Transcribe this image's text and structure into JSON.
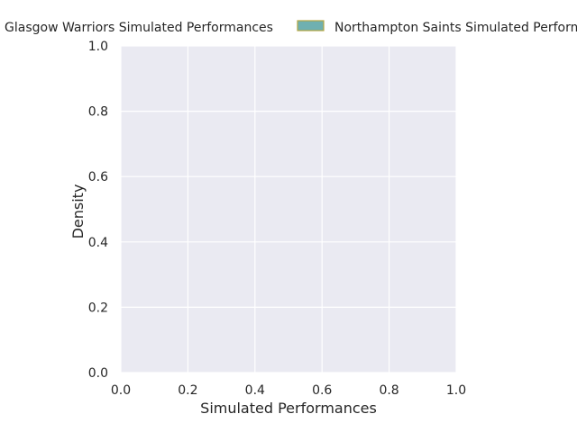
{
  "chart_data": {
    "type": "area",
    "title": "",
    "xlabel": "Simulated Performances",
    "ylabel": "Density",
    "xlim": [
      0.0,
      1.0
    ],
    "ylim": [
      0.0,
      1.0
    ],
    "xticks": [
      "0.0",
      "0.2",
      "0.4",
      "0.6",
      "0.8",
      "1.0"
    ],
    "yticks": [
      "0.0",
      "0.2",
      "0.4",
      "0.6",
      "0.8",
      "1.0"
    ],
    "grid": true,
    "legend_placement": "top",
    "series": [
      {
        "name": "Glasgow Warriors Simulated Performances",
        "values": [],
        "color": "#c8c8c8"
      },
      {
        "name": "Northampton Saints Simulated Performances",
        "values": [],
        "color": "#6fb0b0",
        "edge_color": "#b5a642"
      }
    ],
    "background_color": "#eaeaf2",
    "grid_color": "#ffffff"
  }
}
